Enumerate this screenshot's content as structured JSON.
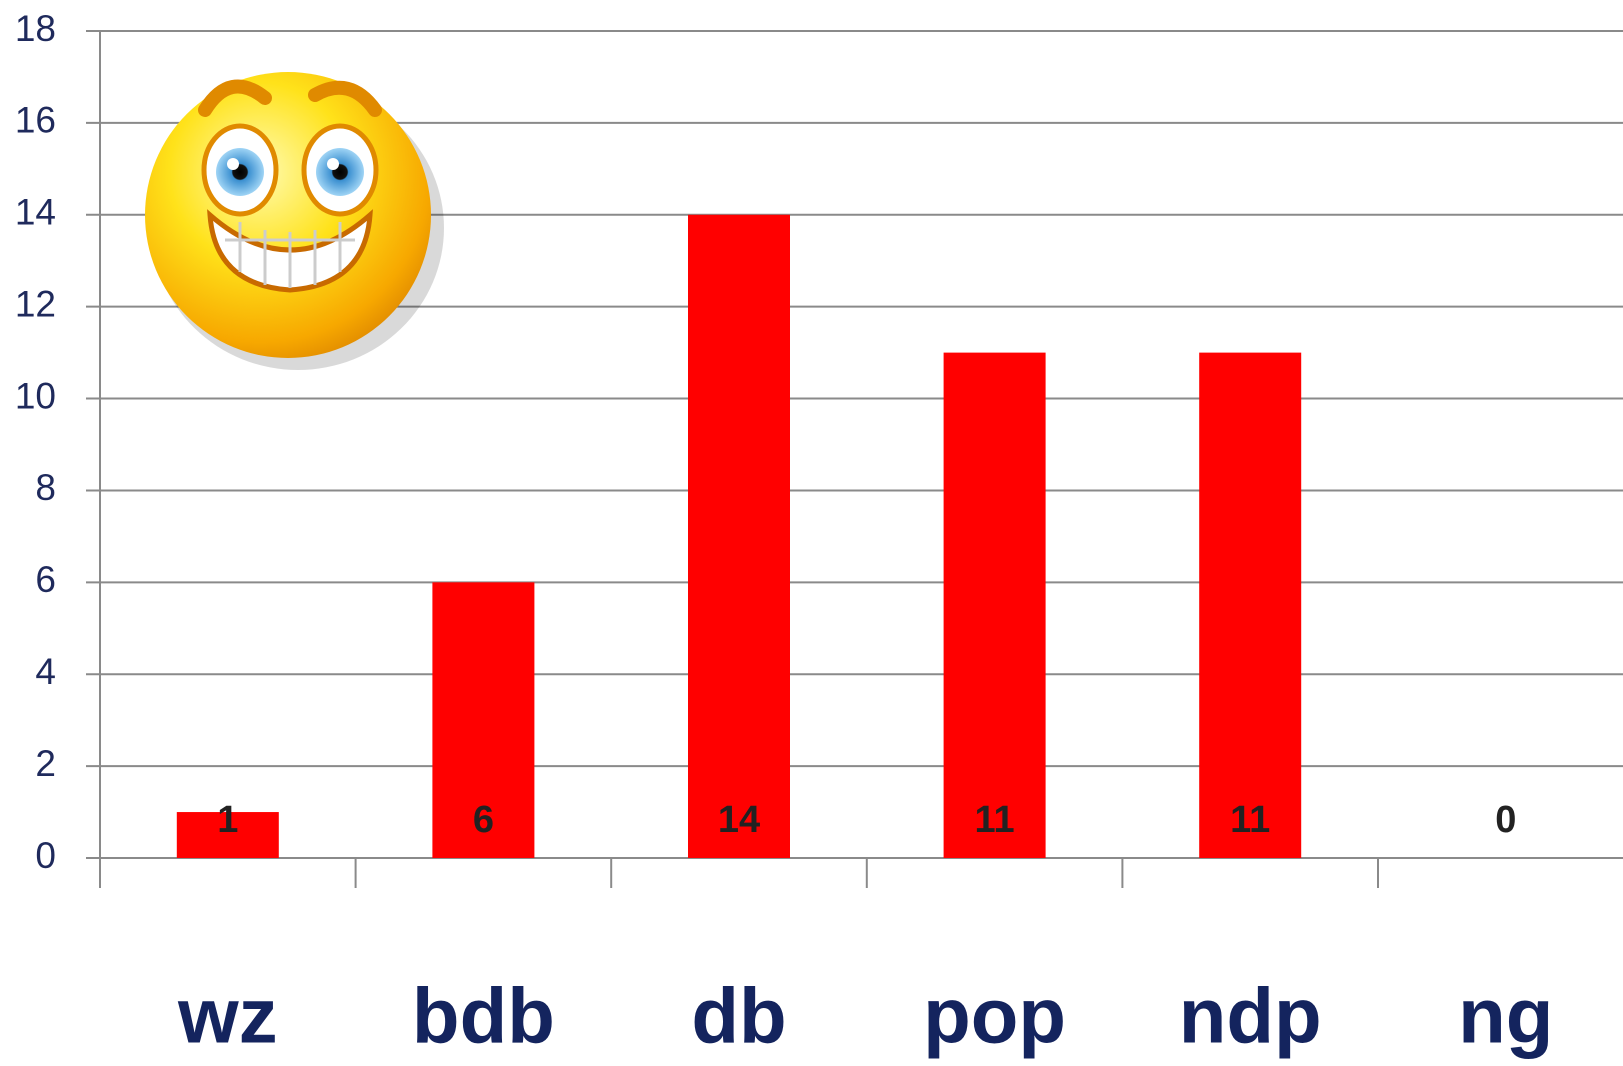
{
  "chart_data": {
    "type": "bar",
    "categories": [
      "wz",
      "bdb",
      "db",
      "pop",
      "ndp",
      "ng"
    ],
    "values": [
      1,
      6,
      14,
      11,
      11,
      0
    ],
    "color": "#ff0000",
    "ylim": [
      0,
      18
    ],
    "yticks": [
      0,
      2,
      4,
      6,
      8,
      10,
      12,
      14,
      16,
      18
    ],
    "grid": true
  }
}
